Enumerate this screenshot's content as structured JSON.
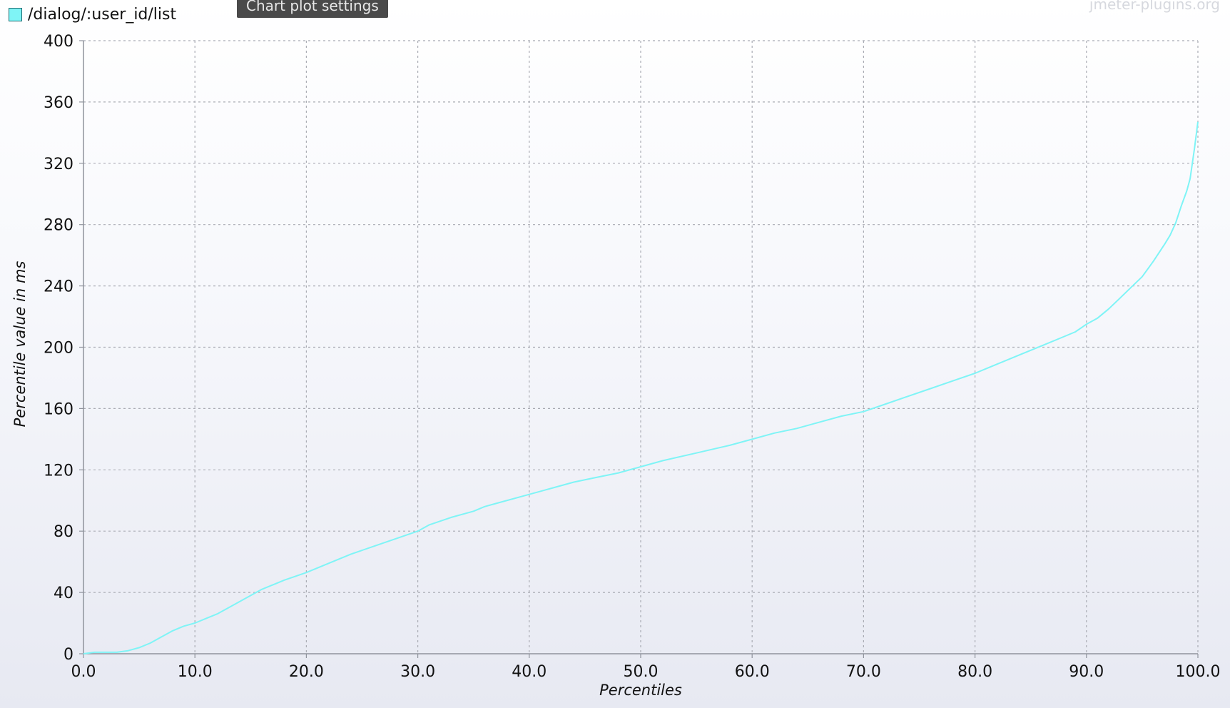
{
  "legend": {
    "label": "/dialog/:user_id/list",
    "color": "#7ff4f6"
  },
  "toolbar": {
    "settings_label": "Chart plot settings"
  },
  "watermark": "jmeter-plugins.org",
  "chart_data": {
    "type": "line",
    "title": "",
    "xlabel": "Percentiles",
    "ylabel": "Percentile value in ms",
    "xlim": [
      0,
      100
    ],
    "ylim": [
      0,
      400
    ],
    "grid": true,
    "legend_position": "top-left",
    "x_ticks": [
      "0.0",
      "10.0",
      "20.0",
      "30.0",
      "40.0",
      "50.0",
      "60.0",
      "70.0",
      "80.0",
      "90.0",
      "100.0"
    ],
    "y_ticks": [
      "0",
      "40",
      "80",
      "120",
      "160",
      "200",
      "240",
      "280",
      "320",
      "360",
      "400"
    ],
    "series": [
      {
        "name": "/dialog/:user_id/list",
        "color": "#7ff4f6",
        "x": [
          0,
          1,
          3,
          4,
          5,
          6,
          7,
          8,
          9,
          10,
          11,
          12,
          13,
          14,
          15,
          16,
          17,
          18,
          20,
          22,
          24,
          26,
          28,
          30,
          31,
          33,
          35,
          36,
          37,
          40,
          42,
          44,
          46,
          48,
          50,
          52,
          55,
          58,
          60,
          62,
          64,
          66,
          68,
          70,
          72,
          74,
          76,
          78,
          80,
          82,
          84,
          86,
          88,
          89,
          90,
          91,
          92,
          93,
          94,
          95,
          96,
          97,
          97.5,
          98,
          98.5,
          99,
          99.3,
          99.5,
          99.7,
          100
        ],
        "values": [
          0,
          1,
          1,
          2,
          4,
          7,
          11,
          15,
          18,
          20,
          23,
          26,
          30,
          34,
          38,
          42,
          45,
          48,
          53,
          59,
          65,
          70,
          75,
          80,
          84,
          89,
          93,
          96,
          98,
          104,
          108,
          112,
          115,
          118,
          122,
          126,
          131,
          136,
          140,
          144,
          147,
          151,
          155,
          158,
          163,
          168,
          173,
          178,
          183,
          189,
          195,
          201,
          207,
          210,
          215,
          219,
          225,
          232,
          239,
          246,
          256,
          267,
          273,
          281,
          292,
          302,
          310,
          320,
          330,
          347
        ]
      }
    ]
  }
}
